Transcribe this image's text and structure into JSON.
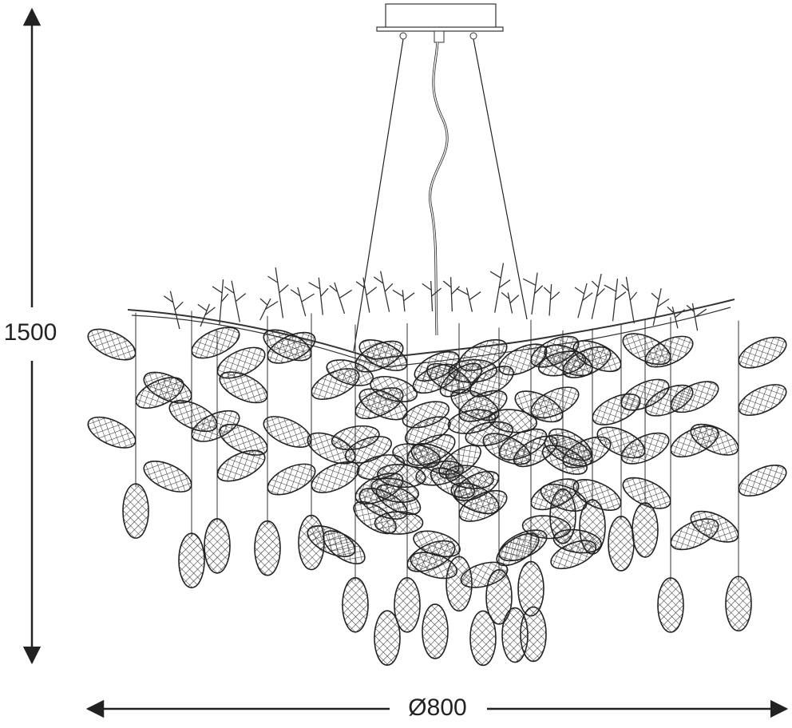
{
  "dimensions": {
    "height": "1500",
    "diameter": "Ø800"
  }
}
